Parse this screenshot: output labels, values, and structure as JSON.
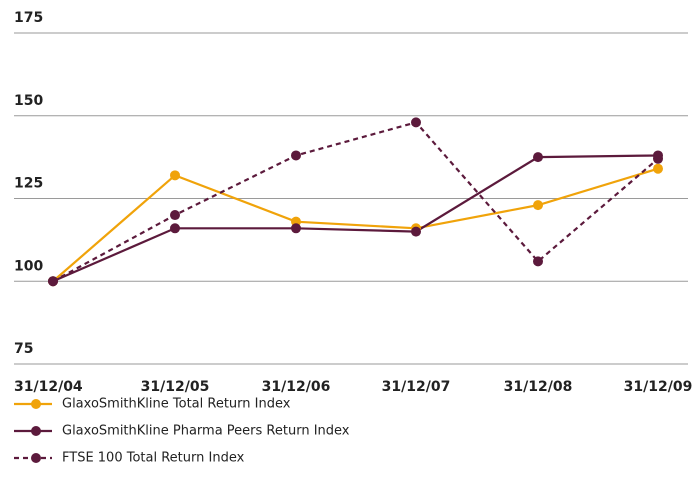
{
  "chart_data": {
    "type": "line",
    "categories": [
      "31/12/04",
      "31/12/05",
      "31/12/06",
      "31/12/07",
      "31/12/08",
      "31/12/09"
    ],
    "series": [
      {
        "name": "GlaxoSmithKline Total Return Index",
        "color": "#f0a30a",
        "dashed": false,
        "values": [
          100,
          132,
          118,
          116,
          123,
          134
        ]
      },
      {
        "name": "GlaxoSmithKline Pharma Peers Return Index",
        "color": "#5c1a3c",
        "dashed": false,
        "values": [
          100,
          116,
          116,
          115,
          137.5,
          138
        ]
      },
      {
        "name": "FTSE 100 Total Return Index",
        "color": "#5c1a3c",
        "dashed": true,
        "values": [
          100,
          120,
          138,
          148,
          106,
          137
        ]
      }
    ],
    "ylim": [
      75,
      175
    ],
    "yticks": [
      75,
      100,
      125,
      150,
      175
    ],
    "grid": true
  }
}
